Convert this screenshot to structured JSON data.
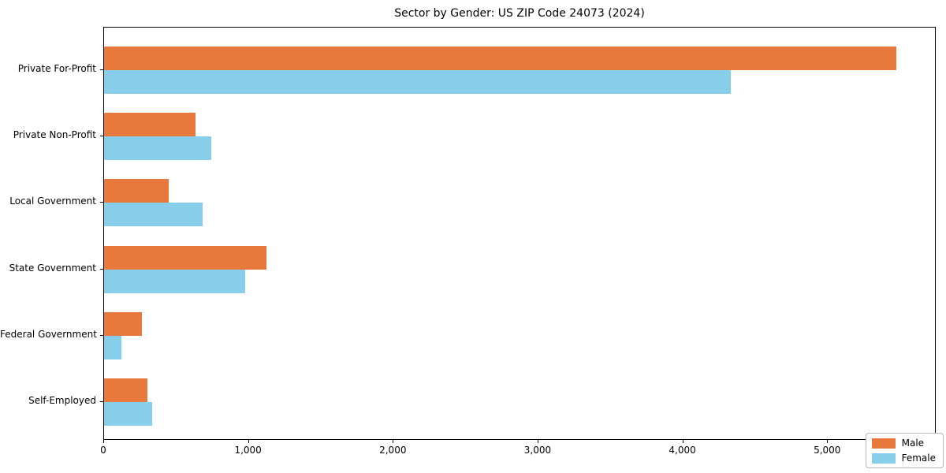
{
  "chart_data": {
    "type": "bar",
    "orientation": "horizontal",
    "title": "Sector by Gender: US ZIP Code 24073 (2024)",
    "categories": [
      "Private For-Profit",
      "Private Non-Profit",
      "Local Government",
      "State Government",
      "Federal Government",
      "Self-Employed"
    ],
    "series": [
      {
        "name": "Male",
        "color": "#e8793d",
        "values": [
          5470,
          630,
          445,
          1120,
          260,
          300
        ]
      },
      {
        "name": "Female",
        "color": "#87ceeb",
        "values": [
          4330,
          740,
          680,
          975,
          120,
          330
        ]
      }
    ],
    "xlabel": "",
    "ylabel": "",
    "xlim": [
      0,
      5750
    ],
    "x_ticks": [
      {
        "value": 0,
        "label": "0"
      },
      {
        "value": 1000,
        "label": "1,000"
      },
      {
        "value": 2000,
        "label": "2,000"
      },
      {
        "value": 3000,
        "label": "3,000"
      },
      {
        "value": 4000,
        "label": "4,000"
      },
      {
        "value": 5000,
        "label": "5,000"
      }
    ],
    "grid": false,
    "legend_position": "lower right",
    "frame_color": "#000000",
    "background_color": "#ffffff"
  }
}
